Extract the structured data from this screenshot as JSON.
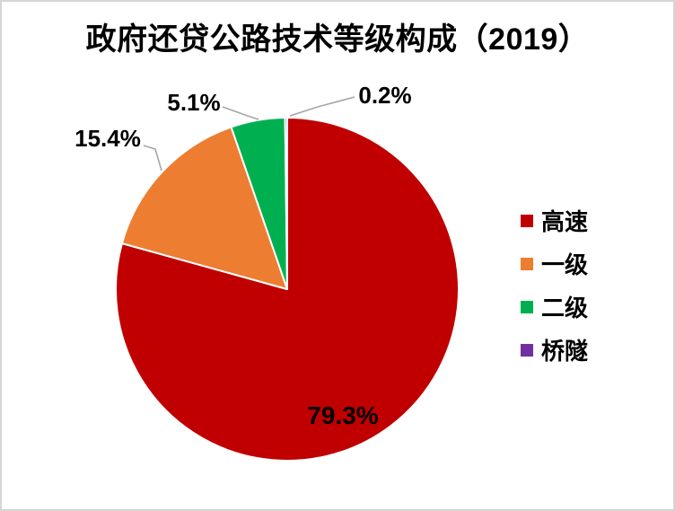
{
  "page": {
    "background": "#FFFFFF",
    "border_color": "#D5D5D5"
  },
  "chart_data": {
    "type": "pie",
    "title": "政府还贷公路技术等级构成（2019）",
    "categories": [
      "高速",
      "一级",
      "二级",
      "桥隧"
    ],
    "values": [
      79.3,
      15.4,
      5.1,
      0.2
    ],
    "data_labels": [
      "79.3%",
      "15.4%",
      "5.1%",
      "0.2%"
    ],
    "colors": [
      "#C00000",
      "#ED7D31",
      "#00B050",
      "#7030A0"
    ],
    "unit": "percent",
    "start_angle_deg": 0,
    "direction": "clockwise",
    "legend_position": "right",
    "slice_border_color": "#FFFFFF",
    "leader_line_color": "#A6A6A6",
    "label_color": "#000000"
  }
}
